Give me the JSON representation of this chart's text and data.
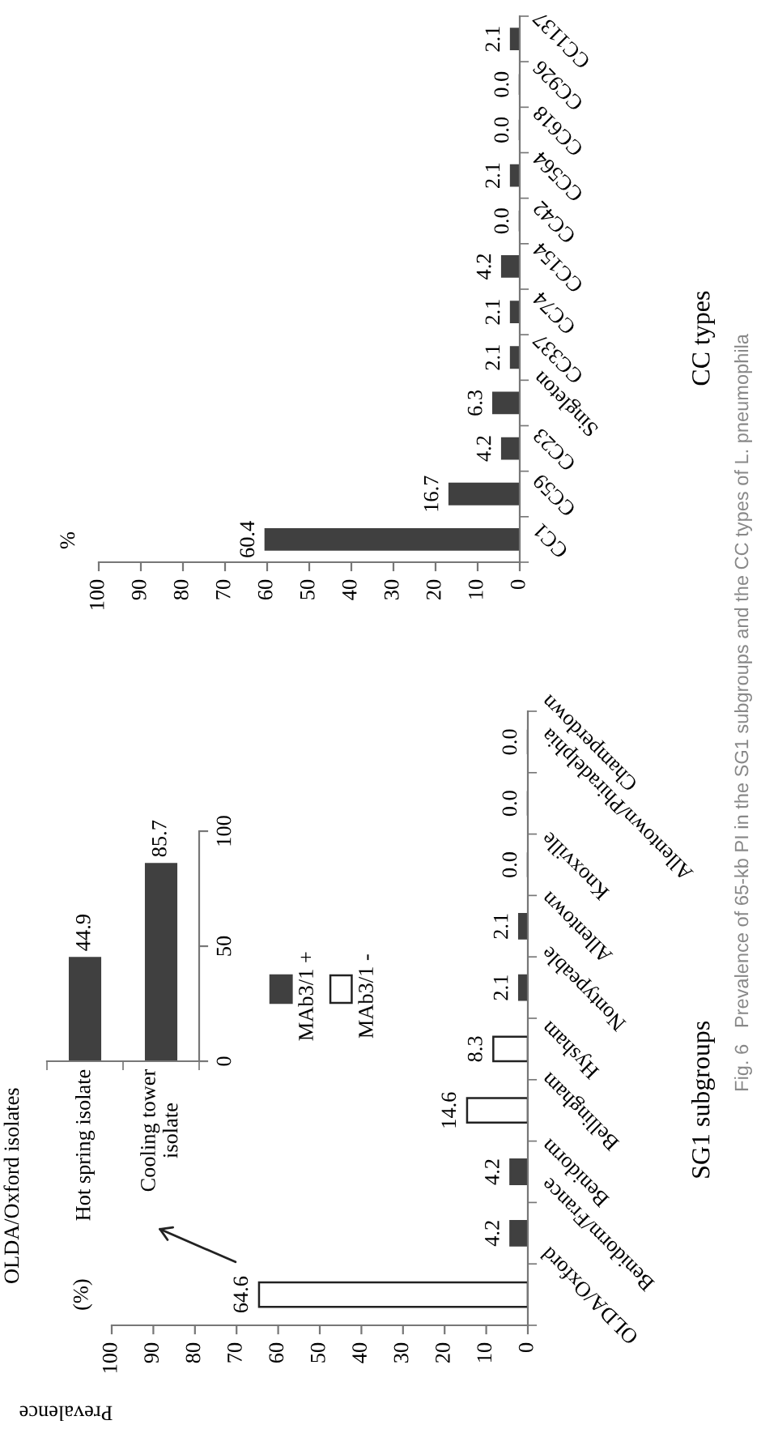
{
  "chart_data": [
    {
      "type": "bar",
      "orientation": "horizontal",
      "xlabel": "Prevalence",
      "ylabel": "SG1 subgroups",
      "annotations": [
        "(%)",
        "Fig. 6   Prevalence of 65-kb PI in the SG1 subgroups and the CC types of L. pneumophila"
      ],
      "categories": [
        "Champerdown",
        "Allentown/Phiradelphia",
        "Knoxville",
        "Allentown",
        "Nontypeable",
        "Hysham",
        "Bellingham",
        "Benidorm",
        "Benidorm/France",
        "OLDA/Oxford"
      ],
      "series": [
        {
          "name": "MAb3/1 +",
          "color": "#404040",
          "values": [
            0.0,
            0.0,
            0.0,
            2.1,
            2.1,
            null,
            null,
            4.2,
            4.2,
            null
          ],
          "value_labels": [
            "0.0",
            "0.0",
            "0.0",
            "2.1",
            "2.1",
            null,
            null,
            "4.2",
            "4.2",
            null
          ]
        },
        {
          "name": "MAb3/1 -",
          "color": "#ffffff",
          "values": [
            null,
            null,
            null,
            null,
            null,
            8.3,
            14.6,
            null,
            null,
            64.6
          ],
          "value_labels": [
            null,
            null,
            null,
            null,
            null,
            "8.3",
            "14.6",
            null,
            null,
            "64.6"
          ]
        }
      ],
      "xlim": [
        100,
        0
      ],
      "xticks": [
        100,
        90,
        80,
        70,
        60,
        50,
        40,
        30,
        20,
        10,
        0
      ],
      "legend": "top left"
    },
    {
      "type": "bar",
      "title": "OLDA/Oxford isolates",
      "categories": [
        "Hot spring isolate",
        "Cooling tower\nisolate"
      ],
      "values": [
        44.9,
        85.7
      ],
      "color": "#404040",
      "ylim": [
        0,
        100
      ],
      "yticks": [
        0,
        50,
        100
      ],
      "data_labels": true
    },
    {
      "type": "bar",
      "orientation": "horizontal",
      "ylabel": "CC types",
      "annotations": [
        "%"
      ],
      "categories": [
        "CC1137",
        "CC926",
        "CC618",
        "CC564",
        "CC42",
        "CC154",
        "CC74",
        "CC337",
        "Singleton",
        "CC23",
        "CC59",
        "CC1"
      ],
      "values": [
        2.1,
        0.0,
        0.0,
        2.1,
        0.0,
        4.2,
        2.1,
        2.1,
        6.3,
        4.2,
        16.7,
        60.4
      ],
      "color": "#404040",
      "value_labels": [
        "2.1",
        "0.0",
        "0.0",
        "2.1",
        "0.0",
        "4.2",
        "2.1",
        "2.1",
        "6.3",
        "4.2",
        "16.7",
        "60.4"
      ],
      "xlim": [
        100,
        0
      ],
      "xticks": [
        100,
        90,
        80,
        70,
        60,
        50,
        40,
        30,
        20,
        10,
        0
      ]
    }
  ]
}
